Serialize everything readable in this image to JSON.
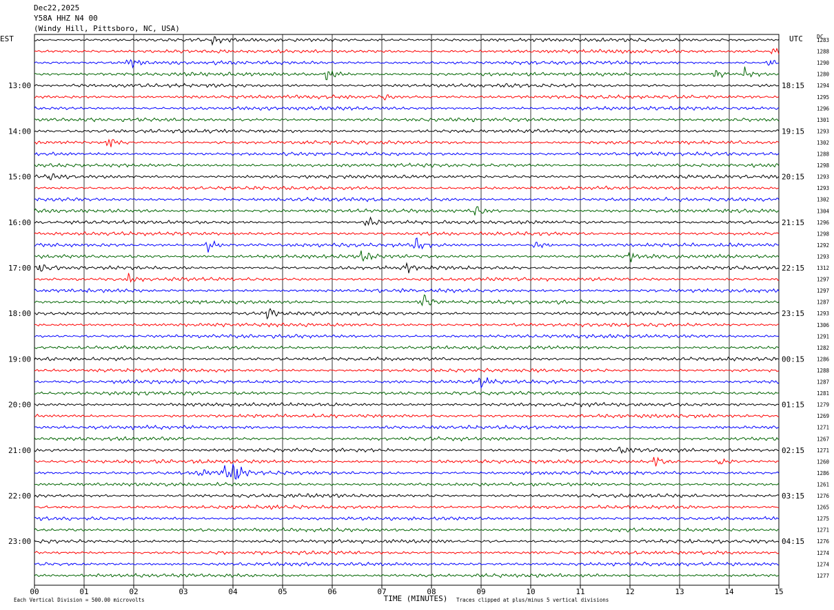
{
  "header": {
    "date": "Dec22,2025",
    "station": "Y58A HHZ N4 00",
    "location": "(Windy Hill, Pittsboro, NC, USA)"
  },
  "labels": {
    "left_tz": "EST",
    "right_tz": "UTC",
    "right_col": "DC",
    "x_title": "TIME (MINUTES)",
    "scale_note": "Each Vertical Division =  500.00 microvolts",
    "clip_note": "Traces clipped at plus/minus 5 vertical divisions"
  },
  "chart_data": {
    "type": "line",
    "title": "",
    "xlabel": "TIME (MINUTES)",
    "xlim": [
      0,
      15
    ],
    "x_ticks": [
      "00",
      "01",
      "02",
      "03",
      "04",
      "05",
      "06",
      "07",
      "08",
      "09",
      "10",
      "11",
      "12",
      "13",
      "14",
      "15"
    ],
    "row_minutes": 15,
    "trace_colors": [
      "#000000",
      "#ff0000",
      "#0000ff",
      "#006400"
    ],
    "left_hour_labels": [
      "13:00",
      "14:00",
      "15:00",
      "16:00",
      "17:00",
      "18:00",
      "19:00",
      "20:00",
      "21:00",
      "22:00",
      "23:00"
    ],
    "right_hour_labels": [
      "18:15",
      "19:15",
      "20:15",
      "21:15",
      "22:15",
      "23:15",
      "00:15",
      "01:15",
      "02:15",
      "03:15",
      "04:15"
    ],
    "dc_offsets": [
      1283,
      1288,
      1290,
      1280,
      1294,
      1295,
      1296,
      1301,
      1293,
      1302,
      1288,
      1298,
      1293,
      1293,
      1302,
      1304,
      1296,
      1298,
      1292,
      1293,
      1312,
      1297,
      1297,
      1287,
      1293,
      1306,
      1291,
      1282,
      1286,
      1288,
      1287,
      1281,
      1279,
      1269,
      1271,
      1267,
      1271,
      1260,
      1286,
      1261,
      1276,
      1265,
      1275,
      1271,
      1276,
      1274,
      1274,
      1277
    ],
    "events": [
      {
        "row": 0,
        "minute": 3.6,
        "amp": 1.4
      },
      {
        "row": 1,
        "minute": 14.9,
        "amp": 2.0
      },
      {
        "row": 2,
        "minute": 1.9,
        "amp": 2.0
      },
      {
        "row": 2,
        "minute": 14.8,
        "amp": 1.3
      },
      {
        "row": 3,
        "minute": 5.9,
        "amp": 2.2
      },
      {
        "row": 3,
        "minute": 13.7,
        "amp": 2.0
      },
      {
        "row": 3,
        "minute": 14.3,
        "amp": 2.4
      },
      {
        "row": 5,
        "minute": 7.0,
        "amp": 1.3
      },
      {
        "row": 9,
        "minute": 1.5,
        "amp": 2.2
      },
      {
        "row": 12,
        "minute": 0.3,
        "amp": 1.5
      },
      {
        "row": 15,
        "minute": 8.9,
        "amp": 3.0
      },
      {
        "row": 16,
        "minute": 6.7,
        "amp": 1.8
      },
      {
        "row": 18,
        "minute": 3.5,
        "amp": 2.6
      },
      {
        "row": 18,
        "minute": 7.7,
        "amp": 2.4
      },
      {
        "row": 18,
        "minute": 10.1,
        "amp": 1.6
      },
      {
        "row": 19,
        "minute": 6.6,
        "amp": 2.0
      },
      {
        "row": 19,
        "minute": 12.0,
        "amp": 2.0
      },
      {
        "row": 20,
        "minute": 0.1,
        "amp": 1.6
      },
      {
        "row": 20,
        "minute": 7.5,
        "amp": 1.8
      },
      {
        "row": 21,
        "minute": 1.9,
        "amp": 1.6
      },
      {
        "row": 23,
        "minute": 7.8,
        "amp": 4.0
      },
      {
        "row": 24,
        "minute": 4.7,
        "amp": 2.0
      },
      {
        "row": 30,
        "minute": 9.0,
        "amp": 1.8
      },
      {
        "row": 36,
        "minute": 11.8,
        "amp": 1.2
      },
      {
        "row": 37,
        "minute": 12.5,
        "amp": 2.6
      },
      {
        "row": 37,
        "minute": 13.8,
        "amp": 1.8
      },
      {
        "row": 38,
        "minute": 3.3,
        "amp": 1.5
      },
      {
        "row": 38,
        "minute": 3.8,
        "amp": 2.4
      },
      {
        "row": 38,
        "minute": 4.0,
        "amp": 4.5
      }
    ]
  }
}
